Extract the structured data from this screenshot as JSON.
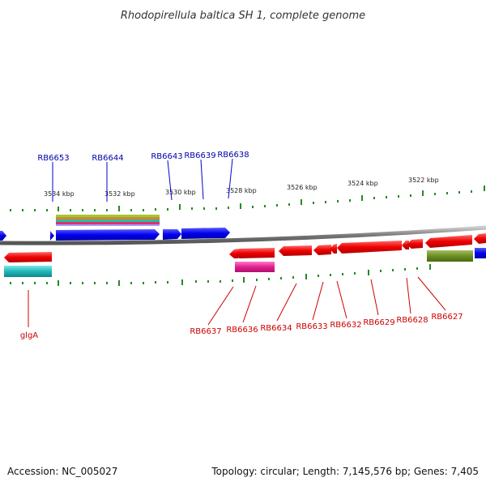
{
  "title": "Rhodopirellula baltica SH 1, complete genome",
  "colors": {
    "forward_gene": "#0000ee",
    "reverse_gene": "#ee0000",
    "tick": "#228b22",
    "backbone": "#777777",
    "label_forward": "#0000aa",
    "label_reverse": "#cc0000",
    "rna_magenta": "#e0208e",
    "rna_cyan": "#20b8b8",
    "misc_olive": "#6b8e23"
  },
  "scale_labels": [
    "3534 kbp",
    "3532 kbp",
    "3530 kbp",
    "3528 kbp",
    "3526 kbp",
    "3524 kbp",
    "3522 kbp"
  ],
  "forward_gene_labels": [
    "RB6653",
    "RB6644",
    "RB6643",
    "RB6639",
    "RB6638"
  ],
  "reverse_gene_labels": [
    "glgA",
    "RB6637",
    "RB6636",
    "RB6634",
    "RB6633",
    "RB6632",
    "RB6629",
    "RB6628",
    "RB6627"
  ],
  "footer": {
    "accession": "Accession: NC_005027",
    "summary": "Topology: circular; Length: 7,145,576 bp; Genes: 7,405"
  }
}
